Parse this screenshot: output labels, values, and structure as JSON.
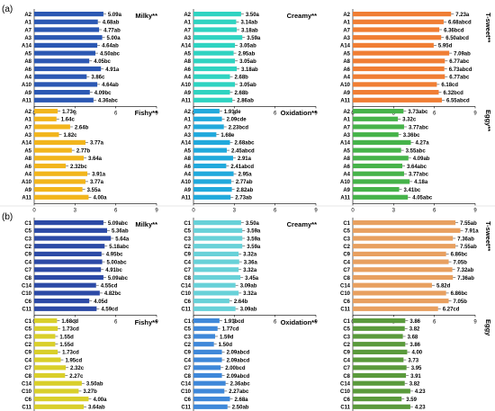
{
  "figure": {
    "panel_labels": [
      "(a)",
      "(b)"
    ]
  },
  "chart_data": [
    {
      "type": "bar",
      "orientation": "horizontal",
      "panel": "(a)",
      "title": "Milky**",
      "color": "#2b58b3",
      "categories": [
        "A2",
        "A1",
        "A7",
        "A3",
        "A14",
        "A5",
        "A8",
        "A6",
        "A4",
        "A10",
        "A9",
        "A11"
      ],
      "values": [
        5.09,
        4.68,
        4.77,
        5.0,
        4.64,
        4.5,
        4.05,
        4.91,
        3.86,
        4.64,
        4.09,
        4.36
      ],
      "labels": [
        "5.09a",
        "4.68ab",
        "4.77ab",
        "5.00a",
        "4.64ab",
        "4.50abc",
        "4.05bc",
        "4.91a",
        "3.86c",
        "4.64ab",
        "4.09bc",
        "4.36abc"
      ],
      "xlim": [
        0,
        9
      ],
      "xticks": [
        "0",
        "3",
        "6",
        "9"
      ]
    },
    {
      "type": "bar",
      "orientation": "horizontal",
      "panel": "(a)",
      "title": "Creamy**",
      "color": "#2fd3c1",
      "categories": [
        "A2",
        "A1",
        "A7",
        "A3",
        "A14",
        "A5",
        "A8",
        "A6",
        "A4",
        "A10",
        "A9",
        "A11"
      ],
      "values": [
        3.5,
        3.14,
        3.18,
        3.59,
        3.05,
        2.95,
        3.05,
        3.18,
        2.68,
        3.05,
        2.68,
        2.86
      ],
      "labels": [
        "3.50a",
        "3.14ab",
        "3.18ab",
        "3.59a",
        "3.05ab",
        "2.95ab",
        "3.05ab",
        "3.18ab",
        "2.68b",
        "3.05ab",
        "2.68b",
        "2.86ab"
      ],
      "xlim": [
        0,
        9
      ],
      "xticks": [
        "0",
        "3",
        "6",
        "9"
      ]
    },
    {
      "type": "bar",
      "orientation": "horizontal",
      "panel": "(a)",
      "title": "T-sweet**",
      "color": "#f07e34",
      "categories": [
        "A2",
        "A1",
        "A7",
        "A3",
        "A14",
        "A5",
        "A8",
        "A6",
        "A4",
        "A10",
        "A9",
        "A11"
      ],
      "values": [
        7.23,
        6.68,
        6.36,
        6.5,
        5.95,
        7.09,
        6.77,
        6.73,
        6.77,
        6.18,
        6.32,
        6.55
      ],
      "labels": [
        "7.23a",
        "6.68abcd",
        "6.36bcd",
        "6.50abcd",
        "5.95d",
        "7.09ab",
        "6.77abc",
        "6.73abcd",
        "6.77abc",
        "6.18cd",
        "6.32bcd",
        "6.55abcd"
      ],
      "xlim": [
        0,
        9
      ],
      "xticks": [
        "0",
        "3",
        "6",
        "9"
      ]
    },
    {
      "type": "bar",
      "orientation": "horizontal",
      "panel": "(a)",
      "title": "Fishy**",
      "color": "#f2b51c",
      "categories": [
        "A2",
        "A1",
        "A7",
        "A3",
        "A14",
        "A5",
        "A8",
        "A6",
        "A4",
        "A10",
        "A9",
        "A11"
      ],
      "values": [
        1.73,
        1.64,
        2.64,
        1.82,
        3.77,
        2.77,
        3.64,
        2.32,
        3.91,
        3.77,
        3.55,
        4.0
      ],
      "labels": [
        "1.73c",
        "1.64c",
        "2.64b",
        "1.82c",
        "3.77a",
        "2.77b",
        "3.64a",
        "2.32bc",
        "3.91a",
        "3.77a",
        "3.55a",
        "4.00a"
      ],
      "xlim": [
        0,
        9
      ],
      "xticks": [
        "0",
        "3",
        "6",
        "9"
      ]
    },
    {
      "type": "bar",
      "orientation": "horizontal",
      "panel": "(a)",
      "title": "Oxidation**",
      "color": "#21a9dc",
      "categories": [
        "A2",
        "A1",
        "A7",
        "A3",
        "A14",
        "A5",
        "A8",
        "A6",
        "A4",
        "A10",
        "A9",
        "A11"
      ],
      "values": [
        1.91,
        2.09,
        2.23,
        1.68,
        2.68,
        2.45,
        2.91,
        2.41,
        2.95,
        2.77,
        2.82,
        2.73
      ],
      "labels": [
        "1.91de",
        "2.09cde",
        "2.23bcd",
        "1.68e",
        "2.68abc",
        "2.45abcd",
        "2.91a",
        "2.41abcd",
        "2.95a",
        "2.77ab",
        "2.82ab",
        "2.73ab"
      ],
      "xlim": [
        0,
        9
      ],
      "xticks": [
        "0",
        "3",
        "6",
        "9"
      ]
    },
    {
      "type": "bar",
      "orientation": "horizontal",
      "panel": "(a)",
      "title": "Eggy**",
      "color": "#46b34a",
      "categories": [
        "A2",
        "A1",
        "A7",
        "A3",
        "A14",
        "A5",
        "A8",
        "A6",
        "A4",
        "A10",
        "A9",
        "A11"
      ],
      "values": [
        3.73,
        3.32,
        3.77,
        3.36,
        4.27,
        3.55,
        4.09,
        3.64,
        3.77,
        4.18,
        3.41,
        4.05
      ],
      "labels": [
        "3.73abc",
        "3.32c",
        "3.77abc",
        "3.36bc",
        "4.27a",
        "3.55abc",
        "4.09ab",
        "3.64abc",
        "3.77abc",
        "4.18a",
        "3.41bc",
        "4.05abc"
      ],
      "xlim": [
        0,
        9
      ],
      "xticks": [
        "0",
        "3",
        "6",
        "9"
      ]
    },
    {
      "type": "bar",
      "orientation": "horizontal",
      "panel": "(b)",
      "title": "Milky**",
      "color": "#2c4aa6",
      "categories": [
        "C1",
        "C5",
        "C3",
        "C2",
        "C9",
        "C4",
        "C7",
        "C8",
        "C14",
        "C10",
        "C6",
        "C11"
      ],
      "values": [
        5.09,
        5.36,
        5.64,
        5.18,
        4.95,
        5.0,
        4.91,
        5.09,
        4.55,
        4.82,
        4.05,
        4.59
      ],
      "labels": [
        "5.09abc",
        "5.36ab",
        "5.64a",
        "5.18abc",
        "4.95bc",
        "5.00abc",
        "4.91bc",
        "5.09abc",
        "4.55cd",
        "4.82bc",
        "4.05d",
        "4.59cd"
      ],
      "xlim": [
        0,
        9
      ],
      "xticks": [
        "0",
        "3",
        "6",
        "9"
      ]
    },
    {
      "type": "bar",
      "orientation": "horizontal",
      "panel": "(b)",
      "title": "Creamy**",
      "color": "#68d1d8",
      "categories": [
        "C1",
        "C5",
        "C3",
        "C2",
        "C9",
        "C4",
        "C7",
        "C8",
        "C14",
        "C10",
        "C6",
        "C11"
      ],
      "values": [
        3.5,
        3.59,
        3.59,
        3.59,
        3.32,
        3.36,
        3.32,
        3.45,
        3.09,
        3.32,
        2.64,
        3.09
      ],
      "labels": [
        "3.50a",
        "3.59a",
        "3.59a",
        "3.59a",
        "3.32a",
        "3.36a",
        "3.32a",
        "3.45a",
        "3.09ab",
        "3.32a",
        "2.64b",
        "3.09ab"
      ],
      "xlim": [
        0,
        9
      ],
      "xticks": [
        "0",
        "3",
        "6",
        "9"
      ]
    },
    {
      "type": "bar",
      "orientation": "horizontal",
      "panel": "(b)",
      "title": "T-sweet**",
      "color": "#e8a060",
      "categories": [
        "C1",
        "C5",
        "C3",
        "C2",
        "C9",
        "C4",
        "C7",
        "C8",
        "C14",
        "C10",
        "C6",
        "C11"
      ],
      "values": [
        7.55,
        7.91,
        7.36,
        7.55,
        6.86,
        7.05,
        7.32,
        7.36,
        5.82,
        6.86,
        7.05,
        6.27
      ],
      "labels": [
        "7.55ab",
        "7.91a",
        "7.36ab",
        "7.55ab",
        "6.86bc",
        "7.05b",
        "7.32ab",
        "7.36ab",
        "5.82d",
        "6.86bc",
        "7.05b",
        "6.27cd"
      ],
      "xlim": [
        0,
        9
      ],
      "xticks": [
        "0",
        "3",
        "6",
        "9"
      ]
    },
    {
      "type": "bar",
      "orientation": "horizontal",
      "panel": "(b)",
      "title": "Fishy**",
      "color": "#d9cf2a",
      "categories": [
        "C1",
        "C5",
        "C3",
        "C2",
        "C9",
        "C4",
        "C7",
        "C8",
        "C14",
        "C10",
        "C6",
        "C11"
      ],
      "values": [
        1.68,
        1.73,
        1.55,
        1.55,
        1.73,
        1.95,
        2.32,
        2.27,
        3.5,
        3.27,
        4.0,
        3.64
      ],
      "labels": [
        "1.68cd",
        "1.73cd",
        "1.55d",
        "1.55d",
        "1.73cd",
        "1.95cd",
        "2.32c",
        "2.27c",
        "3.50ab",
        "3.27b",
        "4.00a",
        "3.64ab"
      ],
      "xlim": [
        0,
        9
      ],
      "xticks": [
        "0",
        "3",
        "6",
        "9"
      ]
    },
    {
      "type": "bar",
      "orientation": "horizontal",
      "panel": "(b)",
      "title": "Oxidation**",
      "color": "#3f88d9",
      "categories": [
        "C1",
        "C5",
        "C3",
        "C2",
        "C9",
        "C4",
        "C7",
        "C8",
        "C14",
        "C10",
        "C6",
        "C11"
      ],
      "values": [
        1.91,
        1.77,
        1.59,
        1.5,
        2.09,
        2.09,
        2.0,
        2.09,
        2.36,
        2.27,
        2.68,
        2.5
      ],
      "labels": [
        "1.91bcd",
        "1.77cd",
        "1.59d",
        "1.50d",
        "2.09abcd",
        "2.09abcd",
        "2.00bcd",
        "2.09abcd",
        "2.36abc",
        "2.27abc",
        "2.68a",
        "2.50ab"
      ],
      "xlim": [
        0,
        9
      ],
      "xticks": [
        "0",
        "3",
        "6",
        "9"
      ]
    },
    {
      "type": "bar",
      "orientation": "horizontal",
      "panel": "(b)",
      "title": "Eggy",
      "color": "#5a9a3c",
      "categories": [
        "C1",
        "C5",
        "C3",
        "C2",
        "C9",
        "C4",
        "C7",
        "C8",
        "C14",
        "C10",
        "C6",
        "C11"
      ],
      "values": [
        3.86,
        3.82,
        3.68,
        3.86,
        4.0,
        3.73,
        3.95,
        3.91,
        3.82,
        4.23,
        3.59,
        4.23
      ],
      "labels": [
        "3.86",
        "3.82",
        "3.68",
        "3.86",
        "4.00",
        "3.73",
        "3.95",
        "3.91",
        "3.82",
        "4.23",
        "3.59",
        "4.23"
      ],
      "xlim": [
        0,
        9
      ],
      "xticks": [
        "0",
        "3",
        "6",
        "9"
      ]
    }
  ]
}
